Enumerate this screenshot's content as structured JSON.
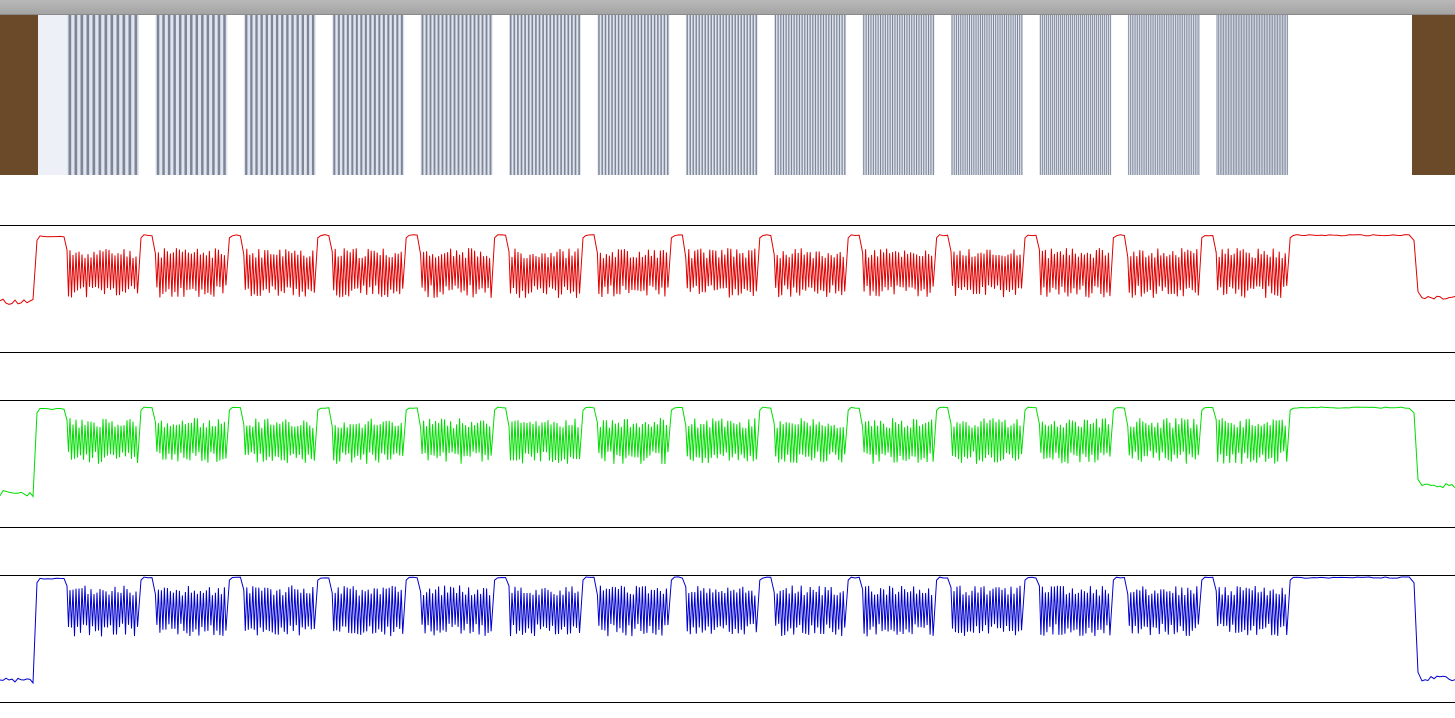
{
  "window": {
    "title": ""
  },
  "colors": {
    "red": "#e00000",
    "green": "#00dd00",
    "blue": "#0000cc",
    "wood": "#6b4a2a",
    "bar_dark": "#7d8596",
    "bar_light": "#dfe4ee",
    "background": "#ffffff",
    "frame": "#000000"
  },
  "strip": {
    "groups": 14,
    "lines_per_group": [
      12,
      13,
      14,
      16,
      18,
      20,
      22,
      24,
      27,
      30,
      33,
      36,
      40,
      44
    ]
  },
  "chart_data": [
    {
      "type": "line",
      "title": "",
      "series": [
        {
          "color": "#e00000",
          "shape": "intensity-profile"
        }
      ],
      "ylim": [
        0,
        1
      ],
      "levels": {
        "dark_left": 0.4,
        "white": 0.93,
        "pattern_high": 0.78,
        "pattern_low": 0.48,
        "dark_right": 0.43
      },
      "grid": false
    },
    {
      "type": "line",
      "title": "",
      "series": [
        {
          "color": "#00dd00",
          "shape": "intensity-profile"
        }
      ],
      "ylim": [
        0,
        1
      ],
      "levels": {
        "dark_left": 0.27,
        "white": 0.95,
        "pattern_high": 0.82,
        "pattern_low": 0.55,
        "dark_right": 0.33
      },
      "grid": false
    },
    {
      "type": "line",
      "title": "",
      "series": [
        {
          "color": "#0000cc",
          "shape": "intensity-profile"
        }
      ],
      "ylim": [
        0,
        1
      ],
      "levels": {
        "dark_left": 0.17,
        "white": 0.99,
        "pattern_high": 0.88,
        "pattern_low": 0.57,
        "dark_right": 0.19
      },
      "grid": false
    }
  ]
}
